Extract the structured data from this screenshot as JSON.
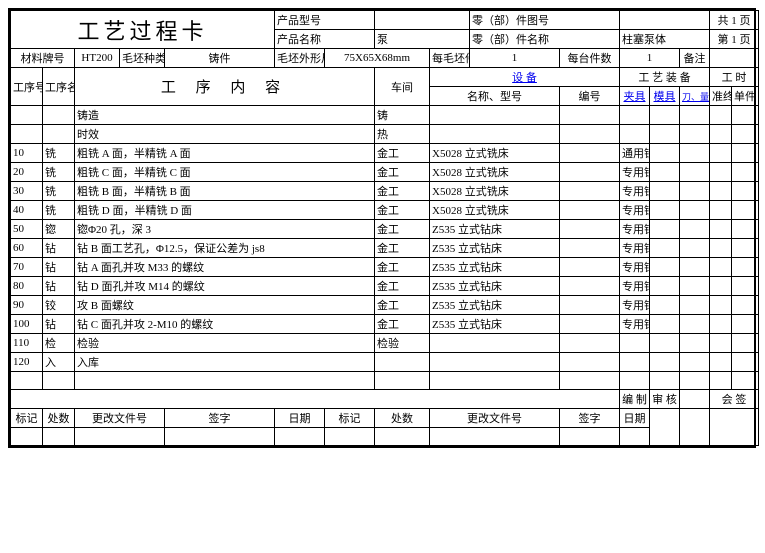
{
  "title": "工艺过程卡",
  "header": {
    "product_model_lbl": "产品型号",
    "product_model": "",
    "product_name_lbl": "产品名称",
    "product_name": "泵",
    "part_drawing_lbl": "零（部）件图号",
    "part_drawing": "",
    "part_name_lbl": "零（部）件名称",
    "part_name": "柱塞泵体",
    "total_pages": "共 1 页",
    "page_no": "第 1 页",
    "material_lbl": "材料牌号",
    "material": "HT200",
    "blank_type_lbl": "毛坯种类",
    "blank_type": "铸件",
    "blank_size_lbl": "毛坯外形尺寸",
    "blank_size": "75X65X68mm",
    "per_blank_lbl": "每毛坯件数",
    "per_blank": "1",
    "per_unit_lbl": "每台件数",
    "per_unit": "1",
    "remarks_lbl": "备注",
    "remarks": ""
  },
  "cols": {
    "process_no": "工序号",
    "process_name": "工序名称",
    "process_content": "工 序 内 容",
    "workshop": "车间",
    "equipment": "设  备",
    "equip_name": "名称、型号",
    "equip_no": "编号",
    "tooling": "工 艺 装 备",
    "fixture": "夹具",
    "mold": "模具",
    "cutter": "刀、量具",
    "hours": "工 时",
    "prep": "准终",
    "unit": "单件"
  },
  "rows": [
    {
      "no": "",
      "name": "",
      "content": "铸造",
      "ws": "铸",
      "equip": "",
      "fixture": ""
    },
    {
      "no": "",
      "name": "",
      "content": "时效",
      "ws": "热",
      "equip": "",
      "fixture": ""
    },
    {
      "no": "10",
      "name": "铣",
      "content": "粗铣 A 面，半精铣 A 面",
      "ws": "金工",
      "equip": "X5028 立式铣床",
      "fixture": "通用铣夹具"
    },
    {
      "no": "20",
      "name": "铣",
      "content": "粗铣 C 面，半精铣 C 面",
      "ws": "金工",
      "equip": "X5028 立式铣床",
      "fixture": "专用铣夹具"
    },
    {
      "no": "30",
      "name": "铣",
      "content": "粗铣 B 面，半精铣 B 面",
      "ws": "金工",
      "equip": "X5028 立式铣床",
      "fixture": "专用铣夹具"
    },
    {
      "no": "40",
      "name": "铣",
      "content": "粗铣 D 面，半精铣 D 面",
      "ws": "金工",
      "equip": "X5028 立式铣床",
      "fixture": "专用铣夹具"
    },
    {
      "no": "50",
      "name": "锪",
      "content": "锪Φ20 孔，深 3",
      "ws": "金工",
      "equip": "Z535 立式钻床",
      "fixture": "专用钻夹具"
    },
    {
      "no": "60",
      "name": "钻",
      "content": "钻 B 面工艺孔，Φ12.5，保证公差为 js8",
      "ws": "金工",
      "equip": "Z535 立式钻床",
      "fixture": "专用钻夹具"
    },
    {
      "no": "70",
      "name": "钻",
      "content": "钻 A 面孔并攻 M33 的螺纹",
      "ws": "金工",
      "equip": "Z535 立式钻床",
      "fixture": "专用钻夹具"
    },
    {
      "no": "80",
      "name": "钻",
      "content": "钻 D 面孔并攻 M14 的螺纹",
      "ws": "金工",
      "equip": "Z535 立式钻床",
      "fixture": "专用钻夹具"
    },
    {
      "no": "90",
      "name": "铰",
      "content": "攻 B 面螺纹",
      "ws": "金工",
      "equip": "Z535 立式钻床",
      "fixture": "专用钻夹具"
    },
    {
      "no": "100",
      "name": "钻",
      "content": "钻 C 面孔并攻 2-M10 的螺纹",
      "ws": "金工",
      "equip": "Z535 立式钻床",
      "fixture": "专用钻夹具"
    },
    {
      "no": "110",
      "name": "检",
      "content": "检验",
      "ws": "检验",
      "equip": "",
      "fixture": ""
    },
    {
      "no": "120",
      "name": "入",
      "content": "入库",
      "ws": "",
      "equip": "",
      "fixture": ""
    }
  ],
  "footer": {
    "compile": "编 制",
    "review": "审 核",
    "cosign": "会 签",
    "mark": "标记",
    "places": "处数",
    "change_doc": "更改文件号",
    "sign": "签字",
    "date": "日期"
  },
  "colors": {
    "border": "#000000",
    "link": "#0000ee",
    "bg": "#ffffff"
  }
}
